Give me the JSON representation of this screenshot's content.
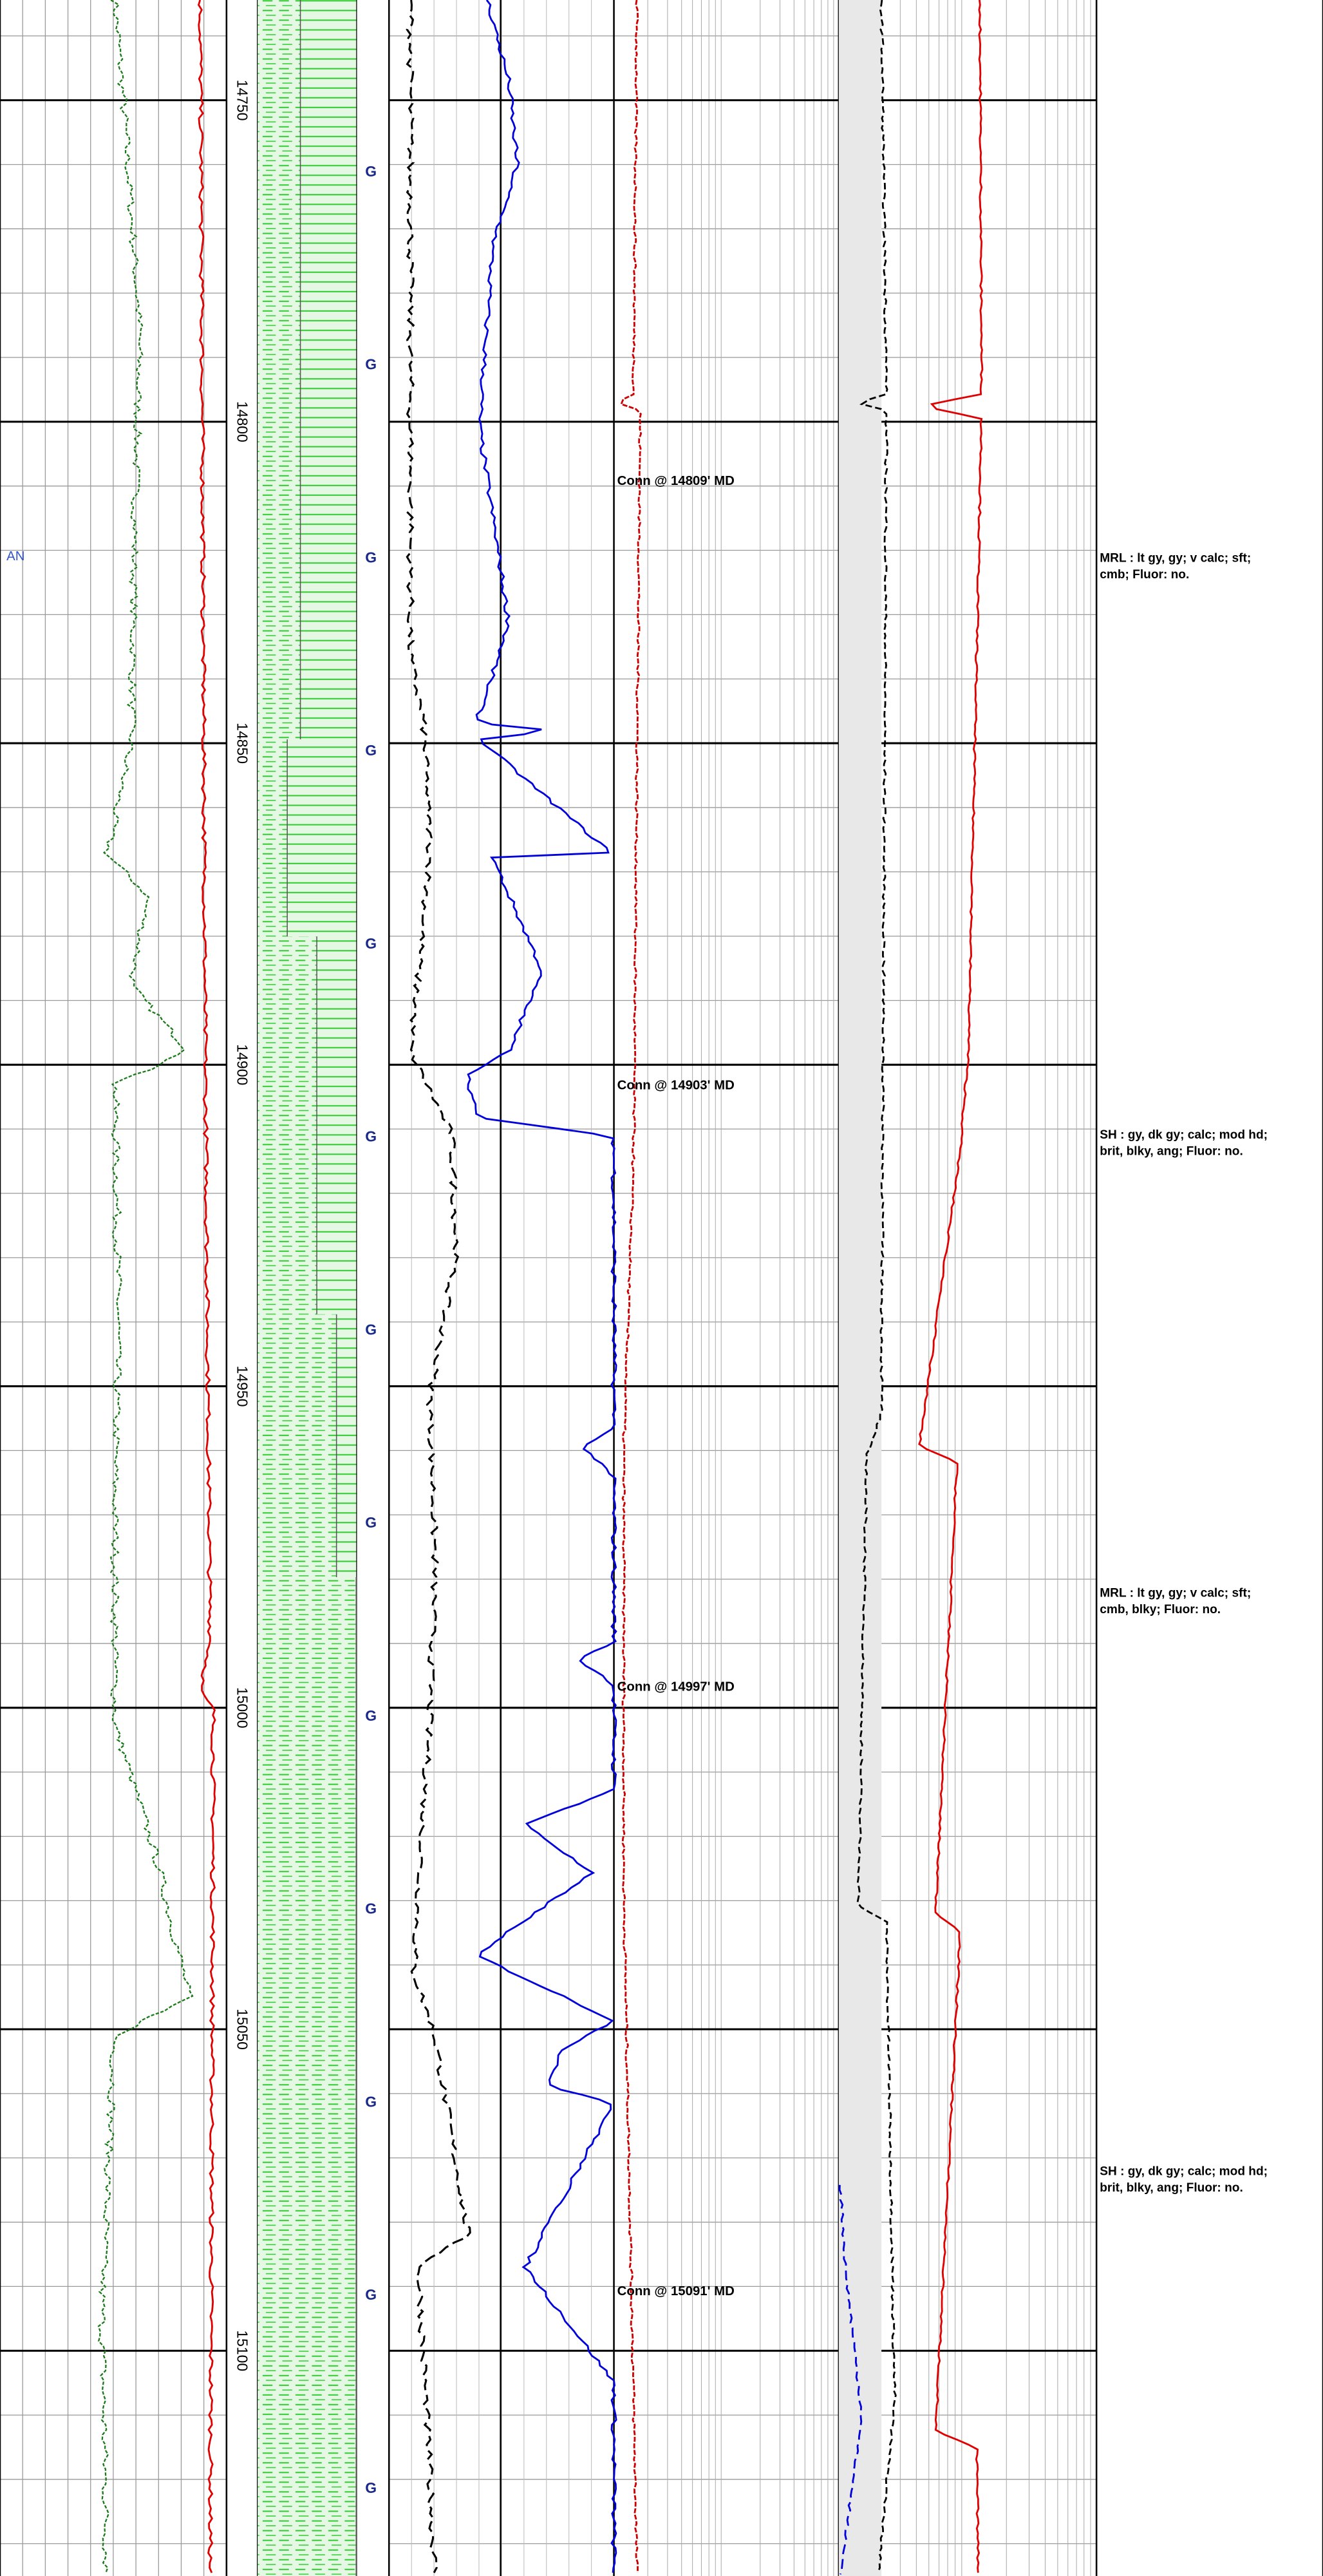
{
  "left_label": "AN",
  "depth_labels": [
    14750,
    14800,
    14850,
    14900,
    14950,
    15000,
    15050,
    15100
  ],
  "gas_markers": [
    "G",
    "G",
    "G",
    "G",
    "G",
    "G",
    "G",
    "G",
    "G",
    "G",
    "G",
    "G",
    "G"
  ],
  "connections": [
    "Conn @ 14809' MD",
    "Conn @ 14903' MD",
    "Conn @ 14997' MD",
    "Conn @ 15091' MD"
  ],
  "lithology_descriptions": [
    [
      "MRL : lt gy, gy;  v calc;  sft;",
      "cmb;  Fluor: no."
    ],
    [
      "SH : gy, dk gy;  calc;  mod hd;",
      "brit, blky, ang;  Fluor: no."
    ],
    [
      "MRL : lt gy, gy;  v calc;  sft;",
      "cmb, blky;  Fluor: no."
    ],
    [
      "SH : gy, dk gy;  calc;  mod hd;",
      "brit, blky, ang;  Fluor: no."
    ]
  ]
}
